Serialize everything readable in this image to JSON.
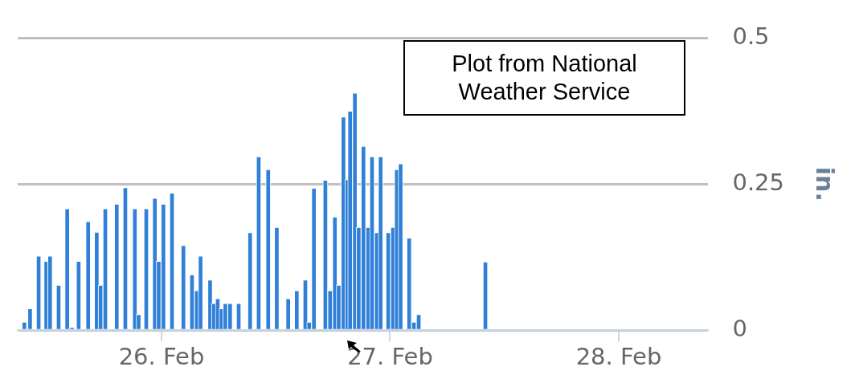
{
  "chart_data": {
    "type": "bar",
    "ylabel": "in.",
    "annotations": [
      "Plot from National Weather Service"
    ],
    "x": [
      "--02-25T09:36",
      "--02-25T10:12",
      "--02-25T11:06",
      "--02-25T11:54",
      "--02-25T12:18",
      "--02-25T13:12",
      "--02-25T14:06",
      "--02-25T14:36",
      "--02-25T15:18",
      "--02-25T16:18",
      "--02-25T17:12",
      "--02-25T17:36",
      "--02-25T18:06",
      "--02-25T19:18",
      "--02-25T20:12",
      "--02-25T21:12",
      "--02-25T21:36",
      "--02-25T22:24",
      "--02-25T23:18",
      "--02-25T23:42",
      "--02-26T00:12",
      "--02-26T01:06",
      "--02-26T02:18",
      "--02-26T03:12",
      "--02-26T03:42",
      "--02-26T04:06",
      "--02-26T05:06",
      "--02-26T05:30",
      "--02-26T05:54",
      "--02-26T06:18",
      "--02-26T06:42",
      "--02-26T07:12",
      "--02-26T08:06",
      "--02-26T09:18",
      "--02-26T10:12",
      "--02-26T11:12",
      "--02-26T12:06",
      "--02-26T13:18",
      "--02-26T14:12",
      "--02-26T15:06",
      "--02-26T15:30",
      "--02-26T16:00",
      "--02-26T17:12",
      "--02-26T17:42",
      "--02-26T18:12",
      "--02-26T18:36",
      "--02-26T19:06",
      "--02-26T19:30",
      "--02-26T19:48",
      "--02-26T20:18",
      "--02-26T20:42",
      "--02-26T21:12",
      "--02-26T21:42",
      "--02-26T22:06",
      "--02-26T22:36",
      "--02-26T23:00",
      "--02-26T23:48",
      "--02-27T00:18",
      "--02-27T00:42",
      "--02-27T01:06",
      "--02-27T02:00",
      "--02-27T02:30",
      "--02-27T03:00",
      "--02-27T10:00"
    ],
    "series": [
      {
        "color": "#3180d8",
        "values": [
          0.014,
          0.037,
          0.127,
          0.118,
          0.127,
          0.077,
          0.208,
          0.005,
          0.118,
          0.186,
          0.168,
          0.077,
          0.208,
          0.216,
          0.244,
          0.208,
          0.027,
          0.208,
          0.226,
          0.118,
          0.216,
          0.235,
          0.145,
          0.095,
          0.068,
          0.127,
          0.086,
          0.046,
          0.054,
          0.037,
          0.046,
          0.046,
          0.046,
          0.167,
          0.297,
          0.275,
          0.176,
          0.054,
          0.068,
          0.086,
          0.014,
          0.243,
          0.257,
          0.068,
          0.194,
          0.077,
          0.365,
          0.258,
          0.375,
          0.406,
          0.176,
          0.315,
          0.176,
          0.297,
          0.167,
          0.297,
          0.167,
          0.176,
          0.275,
          0.285,
          0.158,
          0.014,
          0.027,
          0.117
        ]
      }
    ],
    "xlim": [
      "--02-25T08:54",
      "--02-28T09:24"
    ],
    "xticks": [
      {
        "value": "--02-26",
        "label": "26. Feb"
      },
      {
        "value": "--02-27",
        "label": "27. Feb"
      },
      {
        "value": "--02-28",
        "label": "28. Feb"
      }
    ],
    "ylim": [
      0,
      0.5
    ],
    "yticks": [
      0,
      0.25,
      0.5
    ],
    "grid": "y",
    "legend": false
  }
}
